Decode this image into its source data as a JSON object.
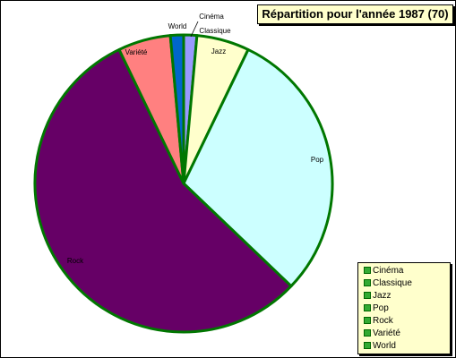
{
  "chart_data": {
    "type": "pie",
    "title": "Répartition pour l'année 1987 (70)",
    "total": 70,
    "slices": [
      {
        "label": "Cinéma",
        "value": 1,
        "color": "#9999ff"
      },
      {
        "label": "Jazz",
        "value": 4,
        "color": "#ffffcc"
      },
      {
        "label": "Pop",
        "value": 21,
        "color": "#ccffff"
      },
      {
        "label": "Rock",
        "value": 39,
        "color": "#660066"
      },
      {
        "label": "Variété",
        "value": 4,
        "color": "#ff8080"
      },
      {
        "label": "World",
        "value": 1,
        "color": "#0066cc"
      },
      {
        "label": "Classique",
        "value": 0,
        "color": "#ffffff"
      }
    ],
    "slice_order": [
      "Cinéma",
      "Classique",
      "Jazz",
      "Pop",
      "Rock",
      "Variété",
      "World"
    ],
    "legend_position": "bottom-right",
    "legend": [
      "Cinéma",
      "Classique",
      "Jazz",
      "Pop",
      "Rock",
      "Variété",
      "World"
    ],
    "border_color": "#007700",
    "title_background": "#ffffcc"
  }
}
